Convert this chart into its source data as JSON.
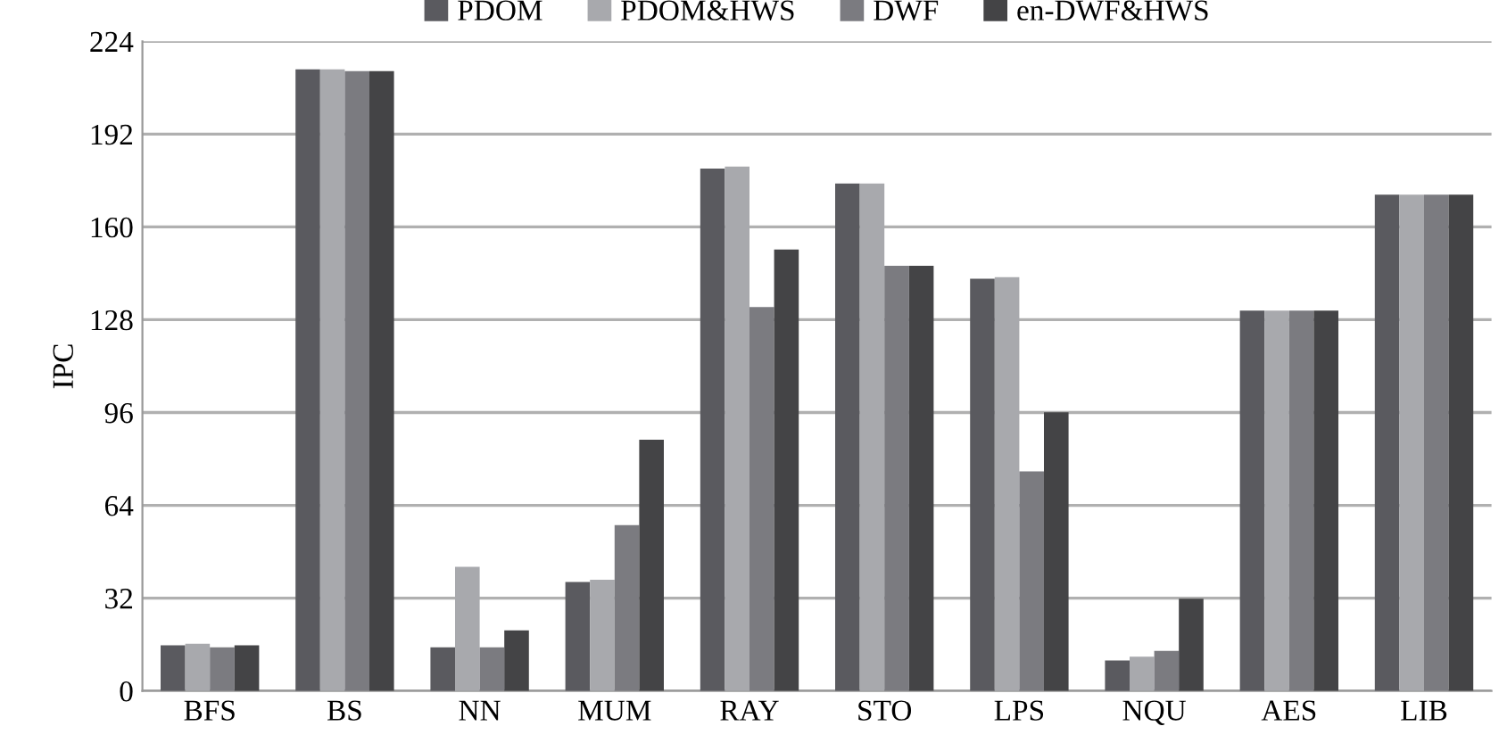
{
  "chart_data": {
    "type": "bar",
    "ylabel": "IPC",
    "categories": [
      "BFS",
      "BS",
      "NN",
      "MUM",
      "RAY",
      "STO",
      "LPS",
      "NQU",
      "AES",
      "LIB"
    ],
    "series": [
      {
        "name": "PDOM",
        "color": "#5a5a5f",
        "values": [
          15.7,
          214.3,
          15,
          37.6,
          180.1,
          175,
          142.1,
          10.5,
          131.1,
          171.1
        ]
      },
      {
        "name": "PDOM&HWS",
        "color": "#a8a9ad",
        "values": [
          16.3,
          214.3,
          42.8,
          38.3,
          180.8,
          175,
          142.7,
          11.8,
          131.1,
          171.1
        ]
      },
      {
        "name": "DWF",
        "color": "#7b7b80",
        "values": [
          15,
          213.7,
          15,
          57.2,
          132.4,
          146.6,
          75.7,
          13.8,
          131.1,
          171.1
        ]
      },
      {
        "name": "en-DWF&HWS",
        "color": "#444446",
        "values": [
          15.7,
          213.7,
          20.9,
          86.6,
          152.2,
          146.6,
          96.1,
          31.8,
          131.1,
          171.1
        ]
      }
    ],
    "ylim": [
      0,
      224
    ],
    "yticks": [
      0,
      32,
      64,
      96,
      128,
      160,
      192,
      224
    ],
    "grid": "y",
    "legend": "top"
  }
}
